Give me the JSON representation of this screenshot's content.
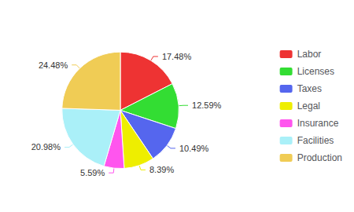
{
  "chart_data": {
    "type": "pie",
    "categories": [
      "Labor",
      "Licenses",
      "Taxes",
      "Legal",
      "Insurance",
      "Facilities",
      "Production"
    ],
    "values": [
      17.48,
      12.59,
      10.49,
      8.39,
      5.59,
      20.98,
      24.48
    ],
    "value_labels": [
      "17.48%",
      "12.59%",
      "10.49%",
      "8.39%",
      "5.59%",
      "20.98%",
      "24.48%"
    ],
    "colors": [
      "#ee3333",
      "#33dd33",
      "#5566ee",
      "#eeee00",
      "#ff55ee",
      "#aaf0f8",
      "#f0cc55"
    ],
    "data_labels": true,
    "legend": "right"
  }
}
